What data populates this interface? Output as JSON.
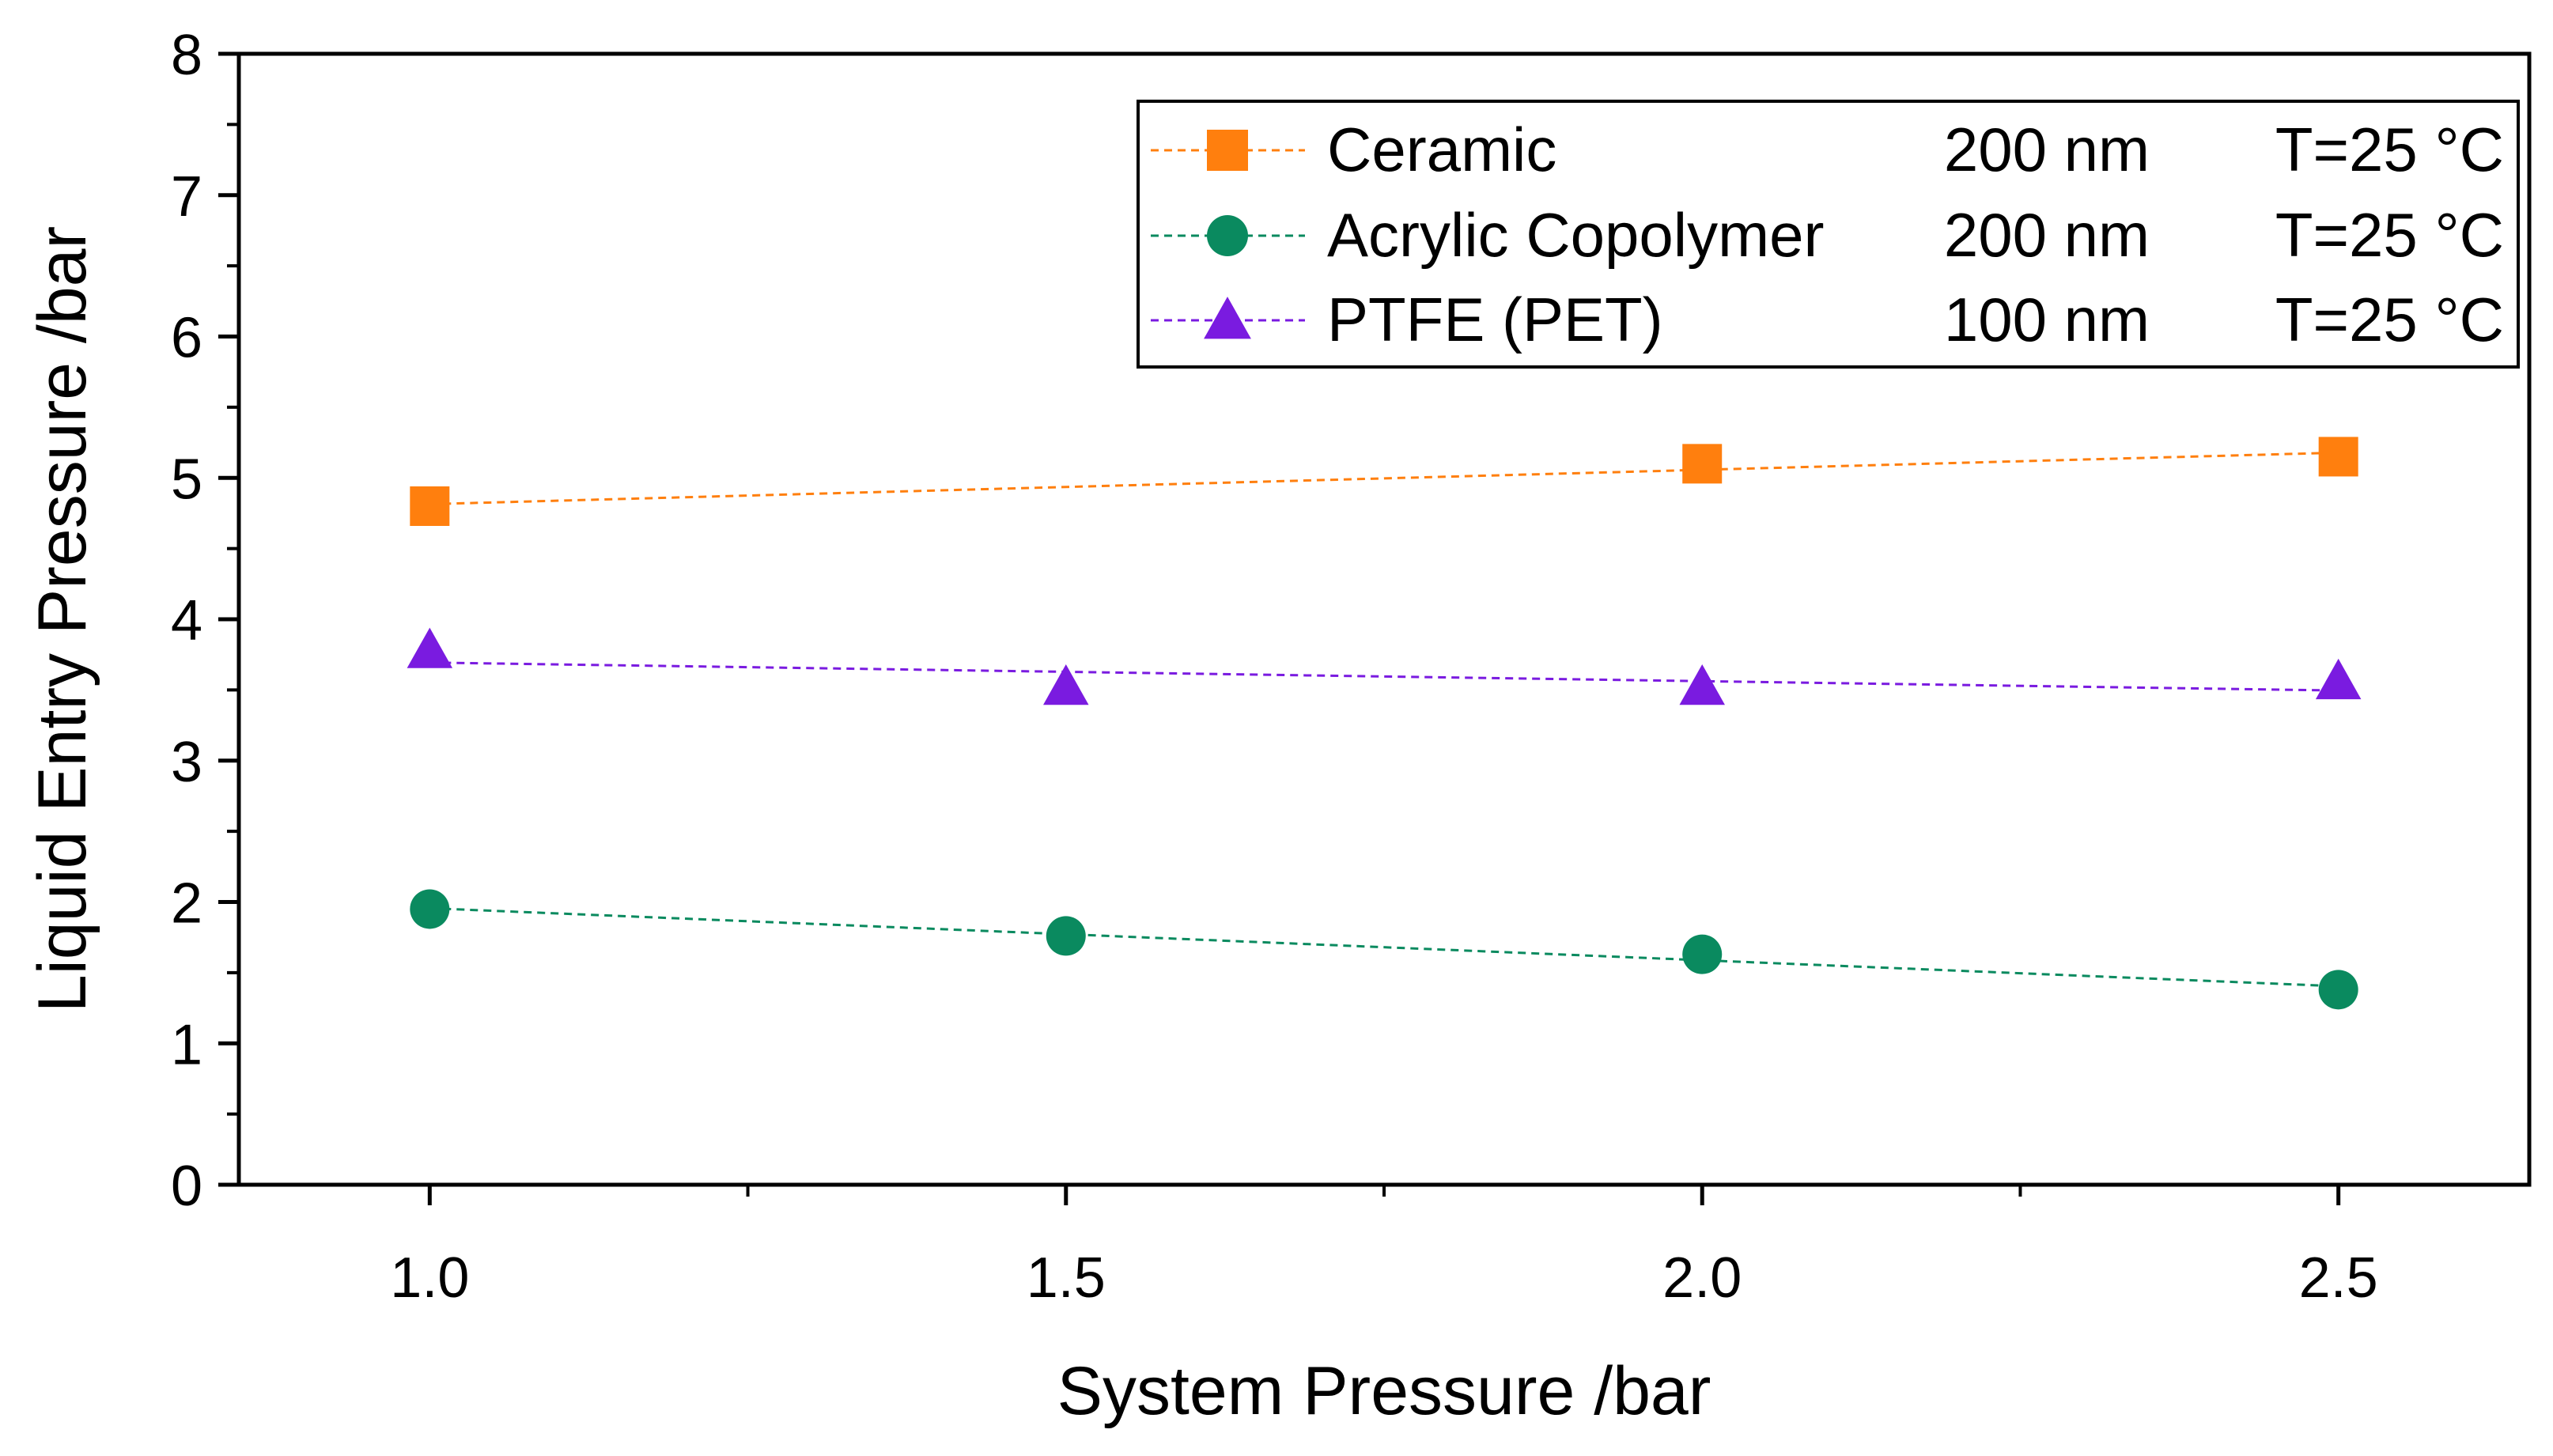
{
  "chart_data": {
    "type": "line",
    "title": "",
    "xlabel": "System Pressure /bar",
    "ylabel": "Liquid Entry Pressure /bar",
    "xlim": [
      0.85,
      2.65
    ],
    "ylim": [
      0,
      8
    ],
    "xticks": [
      1.0,
      1.5,
      2.0,
      2.5
    ],
    "xtick_labels": [
      "1.0",
      "1.5",
      "2.0",
      "2.5"
    ],
    "xminor_ticks": [
      1.25,
      1.75,
      2.25
    ],
    "yticks": [
      0,
      1,
      2,
      3,
      4,
      5,
      6,
      7,
      8
    ],
    "ytick_labels": [
      "0",
      "1",
      "2",
      "3",
      "4",
      "5",
      "6",
      "7",
      "8"
    ],
    "yminor_ticks": [
      0.5,
      1.5,
      2.5,
      3.5,
      4.5,
      5.5,
      6.5,
      7.5
    ],
    "grid": false,
    "legend_position": "top-right",
    "series": [
      {
        "name": "Ceramic",
        "pore_size": "200 nm",
        "temperature": "T=25 °C",
        "marker": "square",
        "color": "#ff7f0e",
        "x": [
          1.0,
          2.0,
          2.5
        ],
        "y": [
          4.8,
          5.1,
          5.15
        ]
      },
      {
        "name": "Acrylic Copolymer",
        "pore_size": "200 nm",
        "temperature": "T=25 °C",
        "marker": "circle",
        "color": "#0a8a5f",
        "x": [
          1.0,
          1.5,
          2.0,
          2.5
        ],
        "y": [
          1.95,
          1.76,
          1.63,
          1.38
        ]
      },
      {
        "name": "PTFE (PET)",
        "pore_size": "100 nm",
        "temperature": "T=25 °C",
        "marker": "triangle",
        "color": "#7a1be0",
        "x": [
          1.0,
          1.5,
          2.0,
          2.5
        ],
        "y": [
          3.78,
          3.52,
          3.52,
          3.56
        ]
      }
    ]
  }
}
